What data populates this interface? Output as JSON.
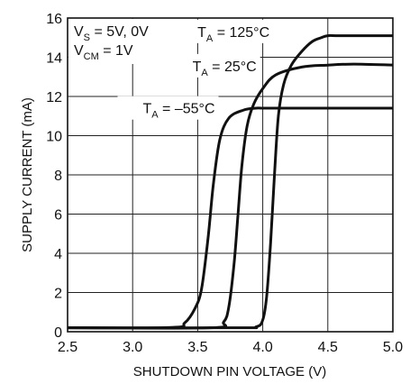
{
  "chart_data": {
    "type": "line",
    "xlabel": "SHUTDOWN PIN VOLTAGE (V)",
    "ylabel": "SUPPLY CURRENT (mA)",
    "xlim": [
      2.5,
      5.0
    ],
    "ylim": [
      0,
      16
    ],
    "xticks": [
      "2.5",
      "3.0",
      "3.5",
      "4.0",
      "4.5",
      "5.0"
    ],
    "yticks": [
      "0",
      "2",
      "4",
      "6",
      "8",
      "10",
      "12",
      "14",
      "16"
    ],
    "grid": true,
    "conditions": [
      {
        "main": "V",
        "sub": "S",
        "rest": " = 5V, 0V"
      },
      {
        "main": "V",
        "sub": "CM",
        "rest": " = 1V"
      }
    ],
    "series": [
      {
        "name": {
          "main": "T",
          "sub": "A",
          "rest": " = 125°C"
        },
        "x": [
          2.5,
          3.8,
          3.95,
          4.0,
          4.03,
          4.06,
          4.09,
          4.12,
          4.16,
          4.22,
          4.3,
          4.38,
          4.45,
          4.5,
          4.6,
          5.0
        ],
        "y": [
          0.2,
          0.2,
          0.25,
          0.6,
          1.8,
          4.5,
          8.0,
          11.0,
          12.6,
          13.6,
          14.3,
          14.8,
          15.0,
          15.1,
          15.1,
          15.1
        ]
      },
      {
        "name": {
          "main": "T",
          "sub": "A",
          "rest": " = 25°C"
        },
        "x": [
          2.5,
          3.6,
          3.7,
          3.74,
          3.78,
          3.81,
          3.84,
          3.88,
          3.93,
          4.0,
          4.1,
          4.3,
          4.5,
          4.7,
          5.0
        ],
        "y": [
          0.2,
          0.2,
          0.5,
          1.3,
          3.5,
          6.0,
          8.5,
          10.5,
          11.6,
          12.4,
          13.1,
          13.5,
          13.6,
          13.65,
          13.6
        ],
        "label_x": 4.07
      },
      {
        "name": {
          "main": "T",
          "sub": "A",
          "rest": " = –55°C"
        },
        "x": [
          2.5,
          3.3,
          3.4,
          3.48,
          3.53,
          3.58,
          3.62,
          3.67,
          3.74,
          3.85,
          3.95,
          4.1,
          5.0
        ],
        "y": [
          0.2,
          0.22,
          0.45,
          1.2,
          2.2,
          4.8,
          7.5,
          9.8,
          10.9,
          11.3,
          11.4,
          11.4,
          11.4
        ],
        "label_x": 3.75
      }
    ]
  }
}
